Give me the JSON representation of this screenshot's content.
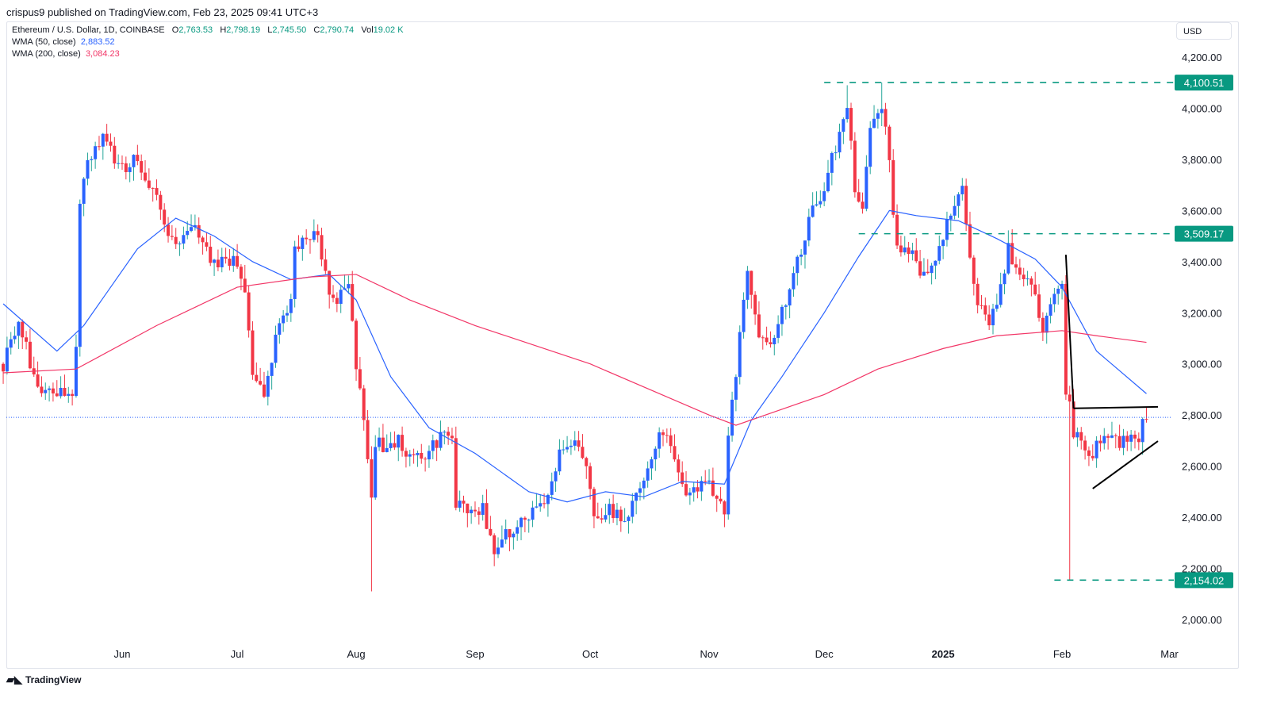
{
  "published": "crispus9 published on TradingView.com, Feb 23, 2025 09:41 UTC+3",
  "legend": {
    "symbol": "Ethereum / U.S. Dollar, 1D, COINBASE",
    "o_label": "O",
    "o": "2,763.53",
    "h_label": "H",
    "h": "2,798.19",
    "l_label": "L",
    "l": "2,745.50",
    "c_label": "C",
    "c": "2,790.74",
    "vol_label": "Vol",
    "vol": "19.02 K",
    "wma50_label": "WMA (50, close)",
    "wma50": "2,883.52",
    "wma200_label": "WMA (200, close)",
    "wma200": "3,084.23"
  },
  "currency": "USD",
  "footer": "TradingView",
  "colors": {
    "up_body": "#2962ff",
    "up_wick": "#26a69a",
    "down": "#f23645",
    "wma50": "#2962ff",
    "wma200": "#f23667",
    "level": "#089981"
  },
  "chart_data": {
    "type": "candlestick",
    "x_ticks": [
      [
        "2024-06-01",
        "Jun"
      ],
      [
        "2024-07-01",
        "Jul"
      ],
      [
        "2024-08-01",
        "Aug"
      ],
      [
        "2024-09-01",
        "Sep"
      ],
      [
        "2024-10-01",
        "Oct"
      ],
      [
        "2024-11-01",
        "Nov"
      ],
      [
        "2024-12-01",
        "Dec"
      ],
      [
        "2025-01-01",
        "2025"
      ],
      [
        "2025-02-01",
        "Feb"
      ],
      [
        "2025-03-01",
        "Mar"
      ]
    ],
    "y_ticks": [
      2000,
      2200,
      2400,
      2600,
      2800,
      3000,
      3200,
      3400,
      3600,
      3800,
      4000,
      4200
    ],
    "ylim": [
      1950,
      4300
    ],
    "xlim": [
      "2024-05-01",
      "2025-03-01"
    ],
    "close_path": [
      [
        "2024-05-01",
        3000
      ],
      [
        "2024-05-05",
        3150
      ],
      [
        "2024-05-10",
        2920
      ],
      [
        "2024-05-15",
        2880
      ],
      [
        "2024-05-19",
        2900
      ],
      [
        "2024-05-20",
        3070
      ],
      [
        "2024-05-21",
        3650
      ],
      [
        "2024-05-23",
        3800
      ],
      [
        "2024-05-27",
        3900
      ],
      [
        "2024-05-31",
        3760
      ],
      [
        "2024-06-05",
        3800
      ],
      [
        "2024-06-10",
        3650
      ],
      [
        "2024-06-14",
        3480
      ],
      [
        "2024-06-17",
        3500
      ],
      [
        "2024-06-21",
        3520
      ],
      [
        "2024-06-25",
        3380
      ],
      [
        "2024-06-30",
        3420
      ],
      [
        "2024-07-03",
        3300
      ],
      [
        "2024-07-05",
        2950
      ],
      [
        "2024-07-08",
        2900
      ],
      [
        "2024-07-11",
        3100
      ],
      [
        "2024-07-15",
        3250
      ],
      [
        "2024-07-16",
        3450
      ],
      [
        "2024-07-22",
        3520
      ],
      [
        "2024-07-24",
        3350
      ],
      [
        "2024-07-26",
        3250
      ],
      [
        "2024-07-30",
        3300
      ],
      [
        "2024-08-01",
        3000
      ],
      [
        "2024-08-04",
        2650
      ],
      [
        "2024-08-05",
        2450
      ],
      [
        "2024-08-06",
        2700
      ],
      [
        "2024-08-08",
        2680
      ],
      [
        "2024-08-12",
        2700
      ],
      [
        "2024-08-16",
        2620
      ],
      [
        "2024-08-20",
        2650
      ],
      [
        "2024-08-24",
        2750
      ],
      [
        "2024-08-26",
        2700
      ],
      [
        "2024-08-27",
        2450
      ],
      [
        "2024-09-03",
        2430
      ],
      [
        "2024-09-06",
        2250
      ],
      [
        "2024-09-10",
        2350
      ],
      [
        "2024-09-15",
        2400
      ],
      [
        "2024-09-19",
        2470
      ],
      [
        "2024-09-23",
        2650
      ],
      [
        "2024-09-27",
        2700
      ],
      [
        "2024-09-30",
        2600
      ],
      [
        "2024-10-02",
        2380
      ],
      [
        "2024-10-05",
        2430
      ],
      [
        "2024-10-10",
        2400
      ],
      [
        "2024-10-14",
        2500
      ],
      [
        "2024-10-16",
        2620
      ],
      [
        "2024-10-20",
        2750
      ],
      [
        "2024-10-22",
        2650
      ],
      [
        "2024-10-26",
        2500
      ],
      [
        "2024-11-01",
        2550
      ],
      [
        "2024-11-03",
        2450
      ],
      [
        "2024-11-05",
        2420
      ],
      [
        "2024-11-06",
        2700
      ],
      [
        "2024-11-09",
        3100
      ],
      [
        "2024-11-11",
        3380
      ],
      [
        "2024-11-14",
        3100
      ],
      [
        "2024-11-18",
        3100
      ],
      [
        "2024-11-22",
        3300
      ],
      [
        "2024-11-24",
        3400
      ],
      [
        "2024-11-28",
        3600
      ],
      [
        "2024-12-01",
        3700
      ],
      [
        "2024-12-05",
        3900
      ],
      [
        "2024-12-07",
        4000
      ],
      [
        "2024-12-09",
        3700
      ],
      [
        "2024-12-11",
        3600
      ],
      [
        "2024-12-13",
        3900
      ],
      [
        "2024-12-16",
        4000
      ],
      [
        "2024-12-18",
        3800
      ],
      [
        "2024-12-19",
        3600
      ],
      [
        "2024-12-20",
        3450
      ],
      [
        "2024-12-24",
        3450
      ],
      [
        "2024-12-26",
        3350
      ],
      [
        "2024-12-30",
        3380
      ],
      [
        "2025-01-03",
        3600
      ],
      [
        "2025-01-06",
        3700
      ],
      [
        "2025-01-08",
        3400
      ],
      [
        "2025-01-10",
        3250
      ],
      [
        "2025-01-13",
        3150
      ],
      [
        "2025-01-16",
        3300
      ],
      [
        "2025-01-18",
        3450
      ],
      [
        "2025-01-20",
        3350
      ],
      [
        "2025-01-24",
        3300
      ],
      [
        "2025-01-27",
        3150
      ],
      [
        "2025-01-30",
        3250
      ],
      [
        "2025-02-01",
        3300
      ],
      [
        "2025-02-02",
        2850
      ],
      [
        "2025-02-03",
        2870
      ],
      [
        "2025-02-04",
        2740
      ],
      [
        "2025-02-06",
        2700
      ],
      [
        "2025-02-08",
        2640
      ],
      [
        "2025-02-12",
        2720
      ],
      [
        "2025-02-16",
        2680
      ],
      [
        "2025-02-19",
        2720
      ],
      [
        "2025-02-21",
        2670
      ],
      [
        "2025-02-22",
        2763.53
      ],
      [
        "2025-02-23",
        2790.74
      ]
    ],
    "extreme_wicks": [
      [
        "2024-08-05",
        2110
      ],
      [
        "2025-02-03",
        2154.02
      ],
      [
        "2024-12-16",
        4100.51
      ],
      [
        "2024-12-07",
        4090
      ]
    ],
    "series": [
      {
        "name": "WMA (50, close)",
        "points": [
          [
            "2024-05-01",
            3235
          ],
          [
            "2024-05-15",
            3050
          ],
          [
            "2024-05-22",
            3150
          ],
          [
            "2024-06-05",
            3450
          ],
          [
            "2024-06-15",
            3570
          ],
          [
            "2024-06-25",
            3500
          ],
          [
            "2024-07-05",
            3400
          ],
          [
            "2024-07-15",
            3330
          ],
          [
            "2024-07-25",
            3350
          ],
          [
            "2024-08-01",
            3250
          ],
          [
            "2024-08-10",
            2950
          ],
          [
            "2024-08-20",
            2750
          ],
          [
            "2024-09-01",
            2650
          ],
          [
            "2024-09-15",
            2500
          ],
          [
            "2024-09-25",
            2460
          ],
          [
            "2024-10-05",
            2500
          ],
          [
            "2024-10-15",
            2480
          ],
          [
            "2024-10-25",
            2540
          ],
          [
            "2024-11-05",
            2530
          ],
          [
            "2024-11-12",
            2780
          ],
          [
            "2024-11-20",
            2950
          ],
          [
            "2024-12-01",
            3200
          ],
          [
            "2024-12-10",
            3420
          ],
          [
            "2024-12-18",
            3600
          ],
          [
            "2024-12-25",
            3580
          ],
          [
            "2025-01-05",
            3560
          ],
          [
            "2025-01-15",
            3490
          ],
          [
            "2025-01-25",
            3410
          ],
          [
            "2025-02-01",
            3300
          ],
          [
            "2025-02-10",
            3050
          ],
          [
            "2025-02-23",
            2883.52
          ]
        ]
      },
      {
        "name": "WMA (200, close)",
        "points": [
          [
            "2024-05-01",
            2965
          ],
          [
            "2024-05-20",
            2980
          ],
          [
            "2024-06-10",
            3150
          ],
          [
            "2024-07-01",
            3300
          ],
          [
            "2024-07-20",
            3340
          ],
          [
            "2024-08-01",
            3350
          ],
          [
            "2024-08-15",
            3250
          ],
          [
            "2024-09-01",
            3150
          ],
          [
            "2024-10-01",
            3000
          ],
          [
            "2024-11-01",
            2800
          ],
          [
            "2024-11-08",
            2760
          ],
          [
            "2024-12-01",
            2880
          ],
          [
            "2024-12-15",
            2980
          ],
          [
            "2025-01-01",
            3060
          ],
          [
            "2025-01-15",
            3110
          ],
          [
            "2025-02-01",
            3130
          ],
          [
            "2025-02-10",
            3110
          ],
          [
            "2025-02-23",
            3084.23
          ]
        ]
      }
    ],
    "levels": [
      {
        "value": 4100.51,
        "label": "4,100.51",
        "from": "2024-12-01"
      },
      {
        "value": 3509.17,
        "label": "3,509.17",
        "from": "2024-12-10"
      },
      {
        "value": 2154.02,
        "label": "2,154.02",
        "from": "2025-01-30"
      }
    ],
    "last_price": 2790.74,
    "trendlines": [
      [
        [
          "2025-02-02",
          3427
        ],
        [
          "2025-02-04",
          2826
        ]
      ],
      [
        [
          "2025-02-04",
          2826
        ],
        [
          "2025-02-26",
          2832
        ]
      ],
      [
        [
          "2025-02-09",
          2512
        ],
        [
          "2025-02-26",
          2698
        ]
      ]
    ]
  }
}
